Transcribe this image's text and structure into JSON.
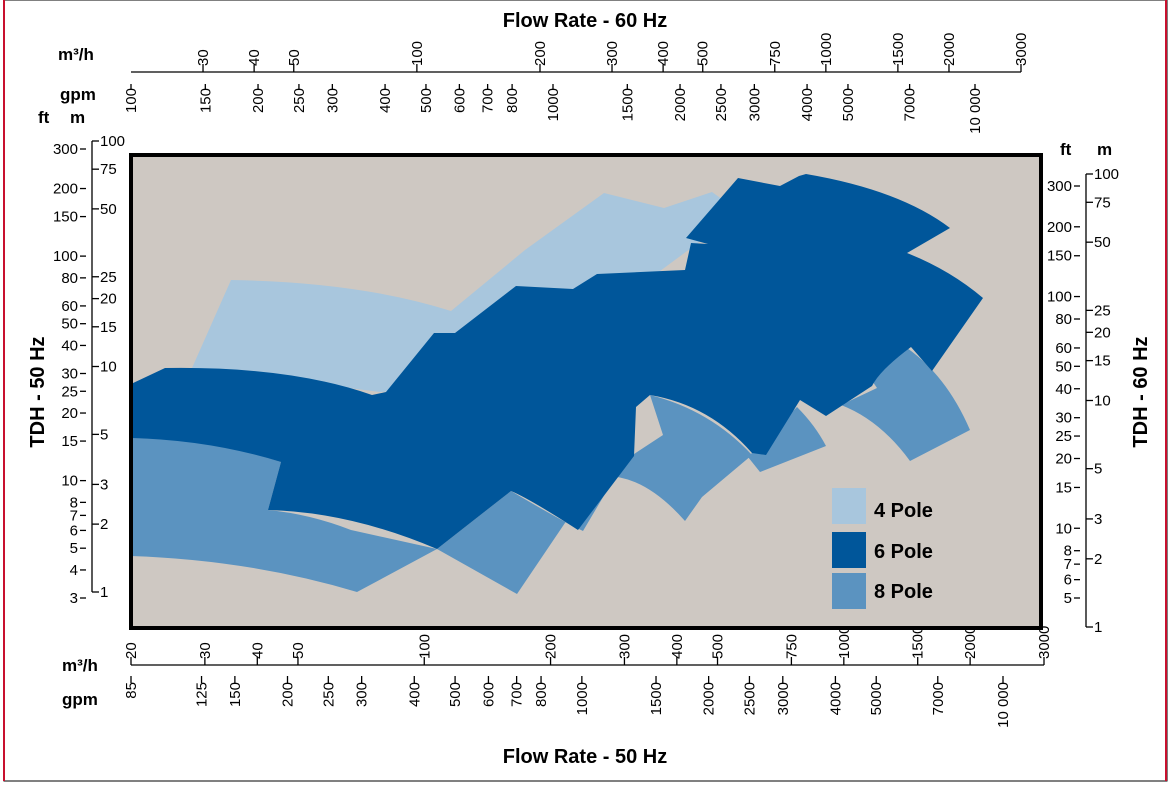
{
  "chart_data": {
    "type": "area",
    "title_top": "Flow Rate - 60 Hz",
    "title_bottom": "Flow Rate - 50 Hz",
    "ylabel_left": "TDH - 50 Hz",
    "ylabel_right": "TDH - 60 Hz",
    "x_scale": "log",
    "y_scale": "log",
    "x60": {
      "unit_m3h": "m³/h",
      "unit_gpm": "gpm",
      "m3h_ticks": [
        "30",
        "40",
        "50",
        "100",
        "200",
        "300",
        "400",
        "500",
        "750",
        "1000",
        "1500",
        "2000",
        "3000"
      ],
      "gpm_ticks": [
        "100",
        "150",
        "200",
        "250",
        "300",
        "400",
        "500",
        "600",
        "700",
        "800",
        "1000",
        "1500",
        "2000",
        "2500",
        "3000",
        "4000",
        "5000",
        "7000",
        "10 000"
      ]
    },
    "x50": {
      "unit_m3h": "m³/h",
      "unit_gpm": "gpm",
      "m3h_ticks": [
        "20",
        "30",
        "40",
        "50",
        "100",
        "200",
        "300",
        "400",
        "500",
        "750",
        "1000",
        "1500",
        "2000",
        "3000"
      ],
      "gpm_ticks": [
        "85",
        "125",
        "150",
        "200",
        "250",
        "300",
        "400",
        "500",
        "600",
        "700",
        "800",
        "1000",
        "1500",
        "2000",
        "2500",
        "3000",
        "4000",
        "5000",
        "7000",
        "10 000"
      ]
    },
    "y50": {
      "unit_ft": "ft",
      "unit_m": "m",
      "ft_ticks": [
        "300",
        "200",
        "150",
        "100",
        "80",
        "60",
        "50",
        "40",
        "30",
        "25",
        "20",
        "15",
        "10",
        "8",
        "7",
        "6",
        "5",
        "4",
        "3"
      ],
      "m_ticks": [
        "100",
        "75",
        "50",
        "25",
        "20",
        "15",
        "10",
        "5",
        "3",
        "2",
        "1"
      ]
    },
    "y60": {
      "unit_ft": "ft",
      "unit_m": "m",
      "ft_ticks": [
        "300",
        "200",
        "150",
        "100",
        "80",
        "60",
        "50",
        "40",
        "30",
        "25",
        "20",
        "15",
        "10",
        "8",
        "7",
        "6",
        "5"
      ],
      "m_ticks": [
        "100",
        "75",
        "50",
        "25",
        "20",
        "15",
        "10",
        "5",
        "3",
        "2",
        "1"
      ]
    },
    "series": [
      {
        "name": "4 Pole",
        "color": "#a8c6dd"
      },
      {
        "name": "6 Pole",
        "color": "#00569a"
      },
      {
        "name": "8 Pole",
        "color": "#5b93c0"
      }
    ],
    "legend_position": "bottom-right",
    "plot_background": "#cec8c2"
  }
}
